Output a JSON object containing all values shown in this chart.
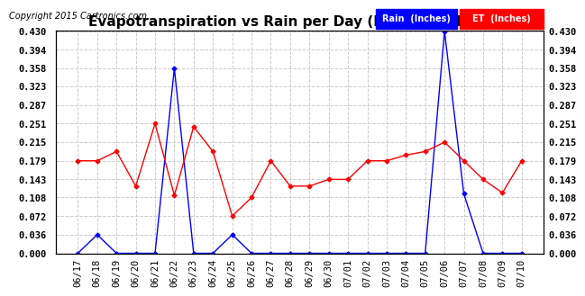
{
  "title": "Evapotranspiration vs Rain per Day (Inches) 20150711",
  "copyright": "Copyright 2015 Cartronics.com",
  "x_labels": [
    "06/17",
    "06/18",
    "06/19",
    "06/20",
    "06/21",
    "06/22",
    "06/23",
    "06/24",
    "06/25",
    "06/26",
    "06/27",
    "06/28",
    "06/29",
    "06/30",
    "07/01",
    "07/02",
    "07/03",
    "07/04",
    "07/05",
    "07/06",
    "07/07",
    "07/08",
    "07/09",
    "07/10"
  ],
  "rain_values": [
    0.0,
    0.036,
    0.0,
    0.0,
    0.0,
    0.358,
    0.0,
    0.0,
    0.036,
    0.0,
    0.0,
    0.0,
    0.0,
    0.0,
    0.0,
    0.0,
    0.0,
    0.0,
    0.0,
    0.43,
    0.115,
    0.0,
    0.0,
    0.0
  ],
  "et_values": [
    0.179,
    0.179,
    0.197,
    0.13,
    0.251,
    0.112,
    0.245,
    0.197,
    0.072,
    0.108,
    0.179,
    0.13,
    0.13,
    0.143,
    0.143,
    0.179,
    0.179,
    0.19,
    0.197,
    0.215,
    0.179,
    0.143,
    0.117,
    0.179
  ],
  "y_ticks": [
    0.0,
    0.036,
    0.072,
    0.108,
    0.143,
    0.179,
    0.215,
    0.251,
    0.287,
    0.323,
    0.358,
    0.394,
    0.43
  ],
  "ylim": [
    0.0,
    0.43
  ],
  "rain_color": "#0000ff",
  "et_color": "#ff0000",
  "background_color": "#ffffff",
  "grid_color": "#cccccc",
  "title_fontsize": 11,
  "tick_fontsize": 7.5,
  "copyright_fontsize": 7
}
